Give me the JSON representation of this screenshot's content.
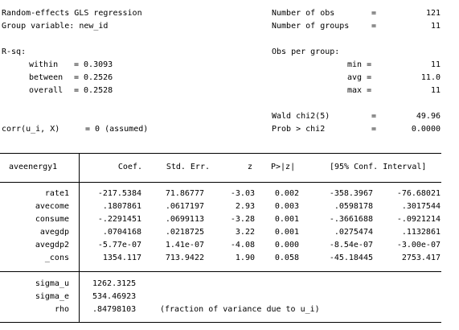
{
  "header": {
    "title": "Random-effects GLS regression",
    "group_var": "Group variable: new_id",
    "rsq_label": "R-sq:",
    "within_label": "within",
    "between_label": "between",
    "overall_label": "overall",
    "within_val": "= 0.3093",
    "between_val": "= 0.2526",
    "overall_val": "= 0.2528",
    "corr_label": "corr(u_i, X)",
    "corr_val": "= 0 (assumed)",
    "nobs_label": "Number of obs",
    "nobs_val": "121",
    "ngroups_label": "Number of groups",
    "ngroups_val": "11",
    "obs_per_group": "Obs per group:",
    "min_label": "min =",
    "min_val": "11",
    "avg_label": "avg =",
    "avg_val": "11.0",
    "max_label": "max =",
    "max_val": "11",
    "wald_label": "Wald chi2(5)",
    "wald_val": "49.96",
    "prob_label": "Prob > chi2",
    "prob_val": "0.0000",
    "eq": "="
  },
  "table": {
    "depvar": "aveenergy1",
    "col_coef": "Coef.",
    "col_se": "Std. Err.",
    "col_z": "z",
    "col_p": "P>|z|",
    "col_ci": "[95% Conf. Interval]",
    "rows": [
      {
        "name": "rate1",
        "coef": "-217.5384",
        "se": "71.86777",
        "z": "-3.03",
        "p": "0.002",
        "lo": "-358.3967",
        "hi": "-76.68021"
      },
      {
        "name": "avecome",
        "coef": ".1807861",
        "se": ".0617197",
        "z": "2.93",
        "p": "0.003",
        "lo": ".0598178",
        "hi": ".3017544"
      },
      {
        "name": "consume",
        "coef": "-.2291451",
        "se": ".0699113",
        "z": "-3.28",
        "p": "0.001",
        "lo": "-.3661688",
        "hi": "-.0921214"
      },
      {
        "name": "avegdp",
        "coef": ".0704168",
        "se": ".0218725",
        "z": "3.22",
        "p": "0.001",
        "lo": ".0275474",
        "hi": ".1132861"
      },
      {
        "name": "avegdp2",
        "coef": "-5.77e-07",
        "se": "1.41e-07",
        "z": "-4.08",
        "p": "0.000",
        "lo": "-8.54e-07",
        "hi": "-3.00e-07"
      },
      {
        "name": "_cons",
        "coef": "1354.117",
        "se": "713.9422",
        "z": "1.90",
        "p": "0.058",
        "lo": "-45.18445",
        "hi": "2753.417"
      }
    ],
    "sigma_u_label": "sigma_u",
    "sigma_u_val": "1262.3125",
    "sigma_e_label": "sigma_e",
    "sigma_e_val": "534.46923",
    "rho_label": "rho",
    "rho_val": ".84798103",
    "rho_note": "(fraction of variance due to u_i)"
  }
}
